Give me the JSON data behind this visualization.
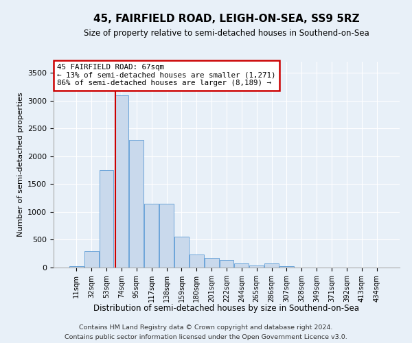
{
  "title": "45, FAIRFIELD ROAD, LEIGH-ON-SEA, SS9 5RZ",
  "subtitle": "Size of property relative to semi-detached houses in Southend-on-Sea",
  "xlabel": "Distribution of semi-detached houses by size in Southend-on-Sea",
  "ylabel": "Number of semi-detached properties",
  "footnote1": "Contains HM Land Registry data © Crown copyright and database right 2024.",
  "footnote2": "Contains public sector information licensed under the Open Government Licence v3.0.",
  "bar_color": "#c9d9ec",
  "bar_edge_color": "#5b9bd5",
  "annotation_box_color": "#ffffff",
  "annotation_box_edge": "#cc0000",
  "vline_color": "#cc0000",
  "categories": [
    "11sqm",
    "32sqm",
    "53sqm",
    "74sqm",
    "95sqm",
    "117sqm",
    "138sqm",
    "159sqm",
    "180sqm",
    "201sqm",
    "222sqm",
    "244sqm",
    "265sqm",
    "286sqm",
    "307sqm",
    "328sqm",
    "349sqm",
    "371sqm",
    "392sqm",
    "413sqm",
    "434sqm"
  ],
  "values": [
    20,
    300,
    1750,
    3100,
    2300,
    1150,
    1150,
    560,
    240,
    170,
    130,
    80,
    40,
    80,
    30,
    0,
    0,
    0,
    0,
    0,
    0
  ],
  "ylim": [
    0,
    3700
  ],
  "yticks": [
    0,
    500,
    1000,
    1500,
    2000,
    2500,
    3000,
    3500
  ],
  "annotation_text1": "45 FAIRFIELD ROAD: 67sqm",
  "annotation_text2": "← 13% of semi-detached houses are smaller (1,271)",
  "annotation_text3": "86% of semi-detached houses are larger (8,189) →",
  "vline_x_index": 2.58,
  "background_color": "#e8f0f8",
  "plot_bg_color": "#e8f0f8"
}
